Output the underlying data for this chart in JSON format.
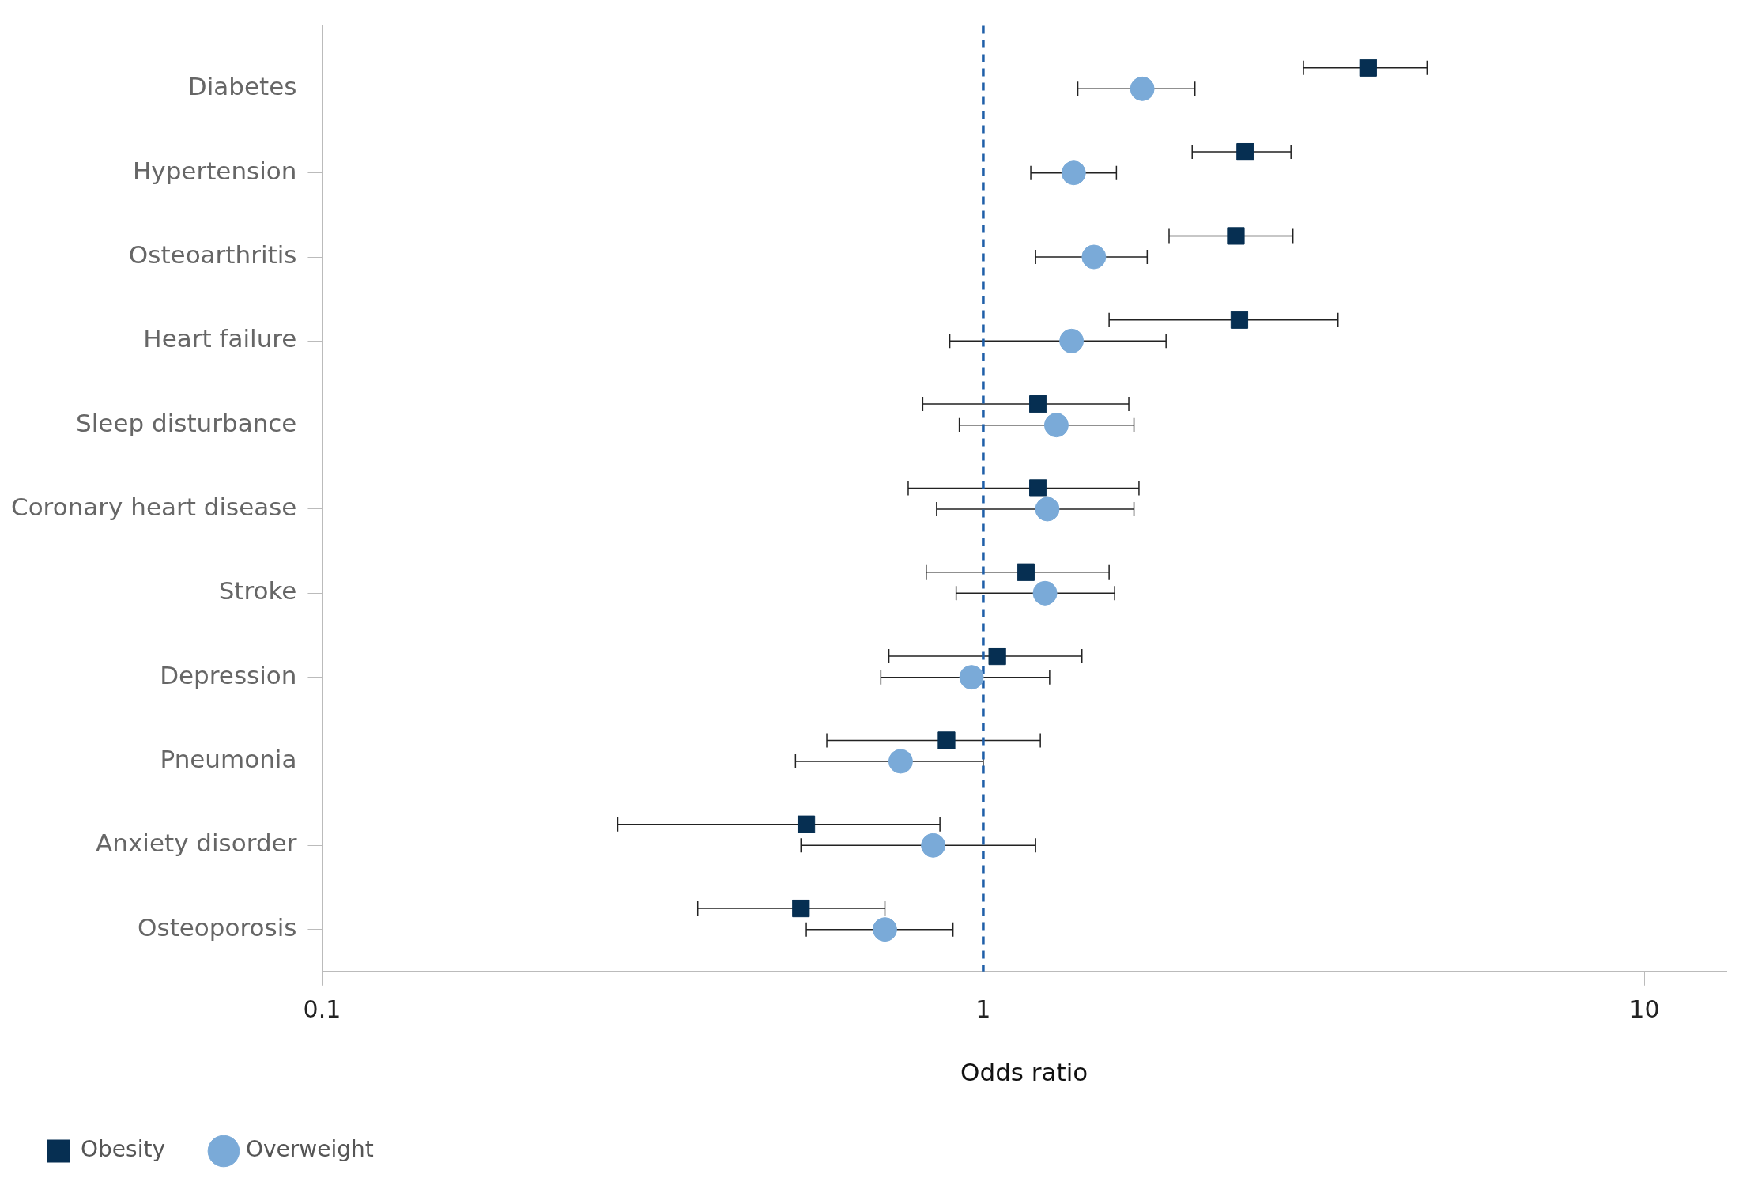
{
  "chart_data": {
    "type": "scatter",
    "orientation": "horizontal",
    "xlabel": "Odds ratio",
    "log": "x",
    "grid": false,
    "legend": "bottom left",
    "categories": [
      "Diabetes",
      "Hypertension",
      "Osteoarthritis",
      "Heart failure",
      "Sleep disturbance",
      "Coronary heart disease",
      "Stroke",
      "Depression",
      "Pneumonia",
      "Anxiety disorder",
      "Osteoporosis"
    ],
    "xlim": [
      0.1,
      13.3
    ],
    "xticks": [
      0.1,
      1,
      10
    ],
    "ref_lines": [
      {
        "axis": "x",
        "value": 1,
        "color": "#1f5fa8",
        "line_style": "dashed"
      }
    ],
    "series": [
      {
        "name": "Obesity",
        "color": "#062f52",
        "marker": "square",
        "values": [
          3.82,
          2.49,
          2.41,
          2.44,
          1.21,
          1.21,
          1.16,
          1.05,
          0.88,
          0.54,
          0.53
        ],
        "errors": [
          [
            3.05,
            4.69
          ],
          [
            2.07,
            2.92
          ],
          [
            1.91,
            2.94
          ],
          [
            1.55,
            3.44
          ],
          [
            0.81,
            1.66
          ],
          [
            0.77,
            1.72
          ],
          [
            0.82,
            1.55
          ],
          [
            0.72,
            1.41
          ],
          [
            0.58,
            1.22
          ],
          [
            0.28,
            0.86
          ],
          [
            0.37,
            0.71
          ]
        ]
      },
      {
        "name": "Overweight",
        "color": "#7aaad8",
        "marker": "circle",
        "values": [
          1.74,
          1.37,
          1.47,
          1.36,
          1.29,
          1.25,
          1.24,
          0.96,
          0.75,
          0.84,
          0.71
        ],
        "errors": [
          [
            1.39,
            2.09
          ],
          [
            1.18,
            1.59
          ],
          [
            1.2,
            1.77
          ],
          [
            0.89,
            1.89
          ],
          [
            0.92,
            1.69
          ],
          [
            0.85,
            1.69
          ],
          [
            0.91,
            1.58
          ],
          [
            0.7,
            1.26
          ],
          [
            0.52,
            1.0
          ],
          [
            0.53,
            1.2
          ],
          [
            0.54,
            0.9
          ]
        ]
      }
    ]
  }
}
